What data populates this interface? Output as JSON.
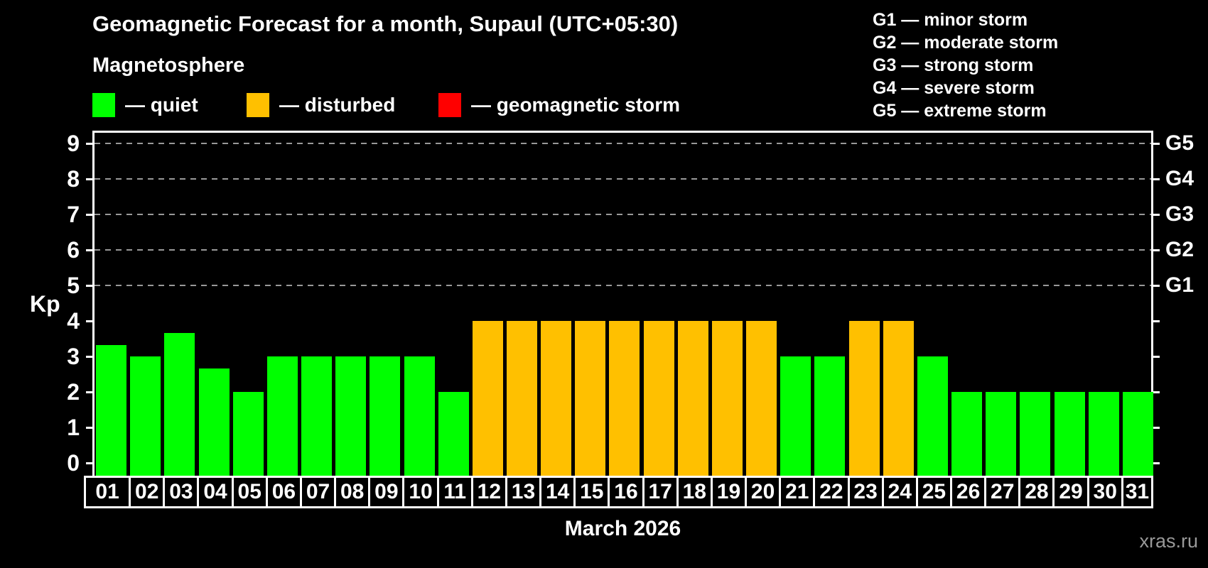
{
  "header": {
    "title": "Geomagnetic Forecast for a month, Supaul (UTC+05:30)",
    "subtitle": "Magnetosphere"
  },
  "legend": {
    "items": [
      {
        "key": "quiet",
        "label": "— quiet",
        "color": "#00ff00"
      },
      {
        "key": "disturbed",
        "label": "— disturbed",
        "color": "#ffc000"
      },
      {
        "key": "storm",
        "label": "— geomagnetic storm",
        "color": "#ff0000"
      }
    ]
  },
  "storm_scale_legend": [
    "G1 — minor storm",
    "G2 — moderate storm",
    "G3 — strong storm",
    "G4 — severe storm",
    "G5 — extreme storm"
  ],
  "watermark": "xras.ru",
  "chart_data": {
    "type": "bar",
    "title": "Geomagnetic Forecast for a month, Supaul (UTC+05:30)",
    "subtitle": "Magnetosphere",
    "xlabel": "March 2026",
    "ylabel": "Kp",
    "ylim": [
      -0.36,
      9.36
    ],
    "y_ticks": [
      0,
      1,
      2,
      3,
      4,
      5,
      6,
      7,
      8,
      9
    ],
    "gridlines_at_kp": [
      5,
      6,
      7,
      8,
      9
    ],
    "grid": "dashed horizontal at storm levels only",
    "legend_position": "top",
    "right_axis_labels": [
      {
        "label": "G1",
        "kp": 5
      },
      {
        "label": "G2",
        "kp": 6
      },
      {
        "label": "G3",
        "kp": 7
      },
      {
        "label": "G4",
        "kp": 8
      },
      {
        "label": "G5",
        "kp": 9
      }
    ],
    "colors": {
      "quiet": "#00ff00",
      "disturbed": "#ffc000",
      "storm": "#ff0000"
    },
    "categories": [
      "01",
      "02",
      "03",
      "04",
      "05",
      "06",
      "07",
      "08",
      "09",
      "10",
      "11",
      "12",
      "13",
      "14",
      "15",
      "16",
      "17",
      "18",
      "19",
      "20",
      "21",
      "22",
      "23",
      "24",
      "25",
      "26",
      "27",
      "28",
      "29",
      "30",
      "31"
    ],
    "values": [
      3.33,
      3,
      3.67,
      2.67,
      2,
      3,
      3,
      3,
      3,
      3,
      2,
      4,
      4,
      4,
      4,
      4,
      4,
      4,
      4,
      4,
      3,
      3,
      4,
      4,
      3,
      2,
      2,
      2,
      2,
      2,
      2
    ],
    "states": [
      "quiet",
      "quiet",
      "quiet",
      "quiet",
      "quiet",
      "quiet",
      "quiet",
      "quiet",
      "quiet",
      "quiet",
      "quiet",
      "disturbed",
      "disturbed",
      "disturbed",
      "disturbed",
      "disturbed",
      "disturbed",
      "disturbed",
      "disturbed",
      "disturbed",
      "quiet",
      "quiet",
      "disturbed",
      "disturbed",
      "quiet",
      "quiet",
      "quiet",
      "quiet",
      "quiet",
      "quiet",
      "quiet"
    ]
  }
}
